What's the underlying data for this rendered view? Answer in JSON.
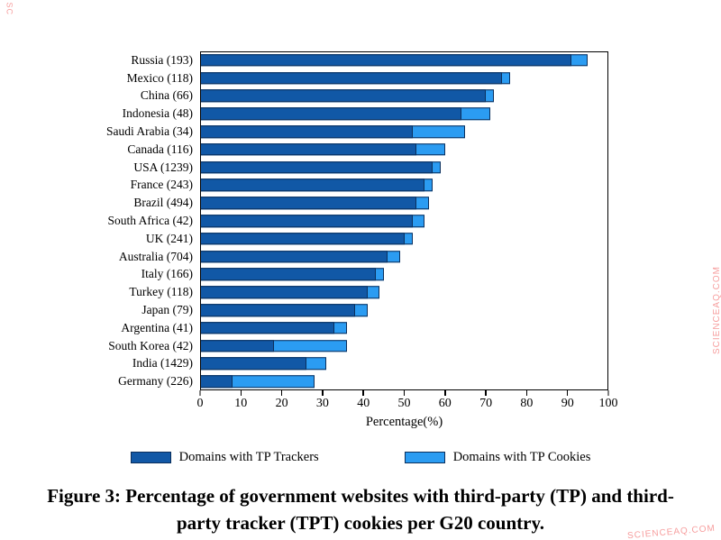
{
  "watermark": {
    "text": "SCIENCEAQ.COM",
    "color": "#f47c7c"
  },
  "caption": {
    "text": "Figure 3: Percentage of government websites with third-party (TP) and third-party tracker (TPT) cookies per G20 country."
  },
  "chart_data": {
    "type": "bar",
    "orientation": "horizontal",
    "title": "",
    "xlabel": "Percentage(%)",
    "ylabel": "",
    "xlim": [
      0,
      100
    ],
    "xticks": [
      0,
      10,
      20,
      30,
      40,
      50,
      60,
      70,
      80,
      90,
      100
    ],
    "grid": false,
    "legend_position": "bottom",
    "categories": [
      "Russia (193)",
      "Mexico (118)",
      "China (66)",
      "Indonesia (48)",
      "Saudi Arabia (34)",
      "Canada (116)",
      "USA (1239)",
      "France (243)",
      "Brazil (494)",
      "South Africa (42)",
      "UK (241)",
      "Australia (704)",
      "Italy (166)",
      "Turkey (118)",
      "Japan (79)",
      "Argentina (41)",
      "South Korea (42)",
      "India (1429)",
      "Germany (226)"
    ],
    "series": [
      {
        "name": "Domains with TP Trackers",
        "color": "#1158a6",
        "values": [
          91,
          74,
          70,
          64,
          52,
          53,
          57,
          55,
          53,
          52,
          50,
          46,
          43,
          41,
          38,
          33,
          18,
          26,
          8
        ]
      },
      {
        "name": "Domains with TP Cookies",
        "color": "#2b9cf2",
        "values": [
          95,
          76,
          72,
          71,
          65,
          60,
          59,
          57,
          56,
          55,
          52,
          49,
          45,
          44,
          41,
          36,
          36,
          31,
          28
        ]
      }
    ]
  }
}
